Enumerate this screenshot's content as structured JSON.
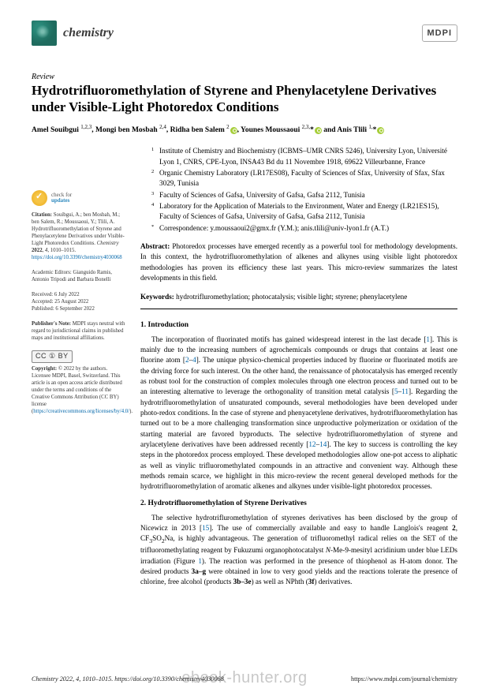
{
  "journal": {
    "name": "chemistry",
    "publisher_mark": "MDPI"
  },
  "article_type": "Review",
  "title": "Hydrotrifluoromethylation of Styrene and Phenylacetylene Derivatives under Visible-Light Photoredox Conditions",
  "authors_html": "Amel Souibgui <span class='sup'>1,2,3</span>, Mongi ben Mosbah <span class='sup'>2,4</span>, Ridha ben Salem <span class='sup'>2</span><span class='orcid'></span>, Younes Moussaoui <span class='sup'>2,3,</span>*<span class='orcid'></span> and Anis Tlili <span class='sup'>1,</span>*<span class='orcid'></span>",
  "affiliations": [
    "Institute of Chemistry and Biochemistry (ICBMS–UMR CNRS 5246), University Lyon, Université Lyon 1, CNRS, CPE-Lyon, INSA43 Bd du 11 Novembre 1918, 69622 Villeurbanne, France",
    "Organic Chemistry Laboratory (LR17ES08), Faculty of Sciences of Sfax, University of Sfax, Sfax 3029, Tunisia",
    "Faculty of Sciences of Gafsa, University of Gafsa, Gafsa 2112, Tunisia",
    "Laboratory for the Application of Materials to the Environment, Water and Energy (LR21ES15), Faculty of Sciences of Gafsa, University of Gafsa, Gafsa 2112, Tunisia"
  ],
  "correspondence": "Correspondence: y.moussaoui2@gmx.fr (Y.M.); anis.tlili@univ-lyon1.fr (A.T.)",
  "abstract": "Photoredox processes have emerged recently as a powerful tool for methodology developments. In this context, the hydrotrifluoromethylation of alkenes and alkynes using visible light photoredox methodologies has proven its efficiency these last years. This micro-review summarizes the latest developments in this field.",
  "keywords": "hydrotrifluromethylation; photocatalysis; visible light; styrene; phenylacetylene",
  "sections": {
    "s1": {
      "heading": "1. Introduction",
      "body": "The incorporation of fluorinated motifs has gained widespread interest in the last decade [<span class='ref'>1</span>]. This is mainly due to the increasing numbers of agrochemicals compounds or drugs that contains at least one fluorine atom [<span class='ref'>2</span>–<span class='ref'>4</span>]. The unique physico-chemical properties induced by fluorine or fluorinated motifs are the driving force for such interest. On the other hand, the renaissance of photocatalysis has emerged recently as robust tool for the construction of complex molecules through one electron process and turned out to be an interesting alternative to leverage the orthogonality of transition metal catalysis [<span class='ref'>5</span>–<span class='ref'>11</span>]. Regarding the hydrotrifluoromethylation of unsaturated compounds, several methodologies have been developed under photo-redox conditions. In the case of styrene and phenyacetylene derivatives, hydrotrifluoromethylation has turned out to be a more challenging transformation since unproductive polymerization or oxidation of the starting material are favored byproducts. The selective hydrotrifluoromethylation of styrene and arylacetylene derivatives have been addressed recently [<span class='ref'>12</span>–<span class='ref'>14</span>]. The key to success is controlling the key steps in the photoredox process employed. These developed methodologies allow one-pot access to aliphatic as well as vinylic trifluoromethylated compounds in an attractive and convenient way. Although these methods remain scarce, we highlight in this micro-review the recent general developed methods for the hydrotrifluoromethylation of aromatic alkenes and alkynes under visible-light photoredox processes."
    },
    "s2": {
      "heading": "2. Hydrotrifluoromethylation of Styrene Derivatives",
      "body": "The selective hydrotrifluromethylation of styrenes derivatives has been disclosed by the group of Nicewicz in 2013 [<span class='ref'>15</span>]. The use of commercially available and easy to handle Langlois's reagent <b>2</b>, CF<sub>3</sub>SO<sub>2</sub>Na, is highly advantageous. The generation of trifluoromethyl radical relies on the SET of the trifluoromethylating reagent by Fukuzumi organophotocatalyst <i>N</i>-Me-9-mesityl acridinium under blue LEDs irradiation (Figure <span class='ref'>1</span>). The reaction was performed in the presence of thiophenol as H-atom donor. The desired products <b>3a–g</b> were obtained in low to very good yields and the reactions tolerate the presence of chlorine, free alcohol (products <b>3b–3e</b>) as well as NPhth (<b>3f</b>) derivatives."
    }
  },
  "sidebar": {
    "check_l1": "check for",
    "check_l2": "updates",
    "citation_label": "Citation:",
    "citation": "Souibgui, A.; ben Mosbah, M.; ben Salem, R.; Moussaoui, Y.; Tlili, A. Hydrotrifluoromethylation of Styrene and Phenylacetylene Derivatives under Visible-Light Photoredox Conditions. <i>Chemistry</i> <b>2022</b>, <i>4</i>, 1010–1015. <span class='side-link'>https://doi.org/10.3390/chemistry4030068</span>",
    "editors_label": "Academic Editors:",
    "editors": "Gianguido Ramis, Antonio Tripodi and Barbara Bonelli",
    "received": "Received: 6 July 2022",
    "accepted": "Accepted: 25 August 2022",
    "published": "Published: 6 September 2022",
    "pubnote_label": "Publisher's Note:",
    "pubnote": "MDPI stays neutral with regard to jurisdictional claims in published maps and institutional affiliations.",
    "cc_text": "CC ① BY",
    "copyright_label": "Copyright:",
    "copyright": "© 2022 by the authors. Licensee MDPI, Basel, Switzerland. This article is an open access article distributed under the terms and conditions of the Creative Commons Attribution (CC BY) license (<span class='side-link'>https://creativecommons.org/licenses/by/4.0/</span>)."
  },
  "footer": {
    "left": "Chemistry 2022, 4, 1010–1015. https://doi.org/10.3390/chemistry4030068",
    "right": "https://www.mdpi.com/journal/chemistry"
  },
  "watermark": "ebook-hunter.org"
}
